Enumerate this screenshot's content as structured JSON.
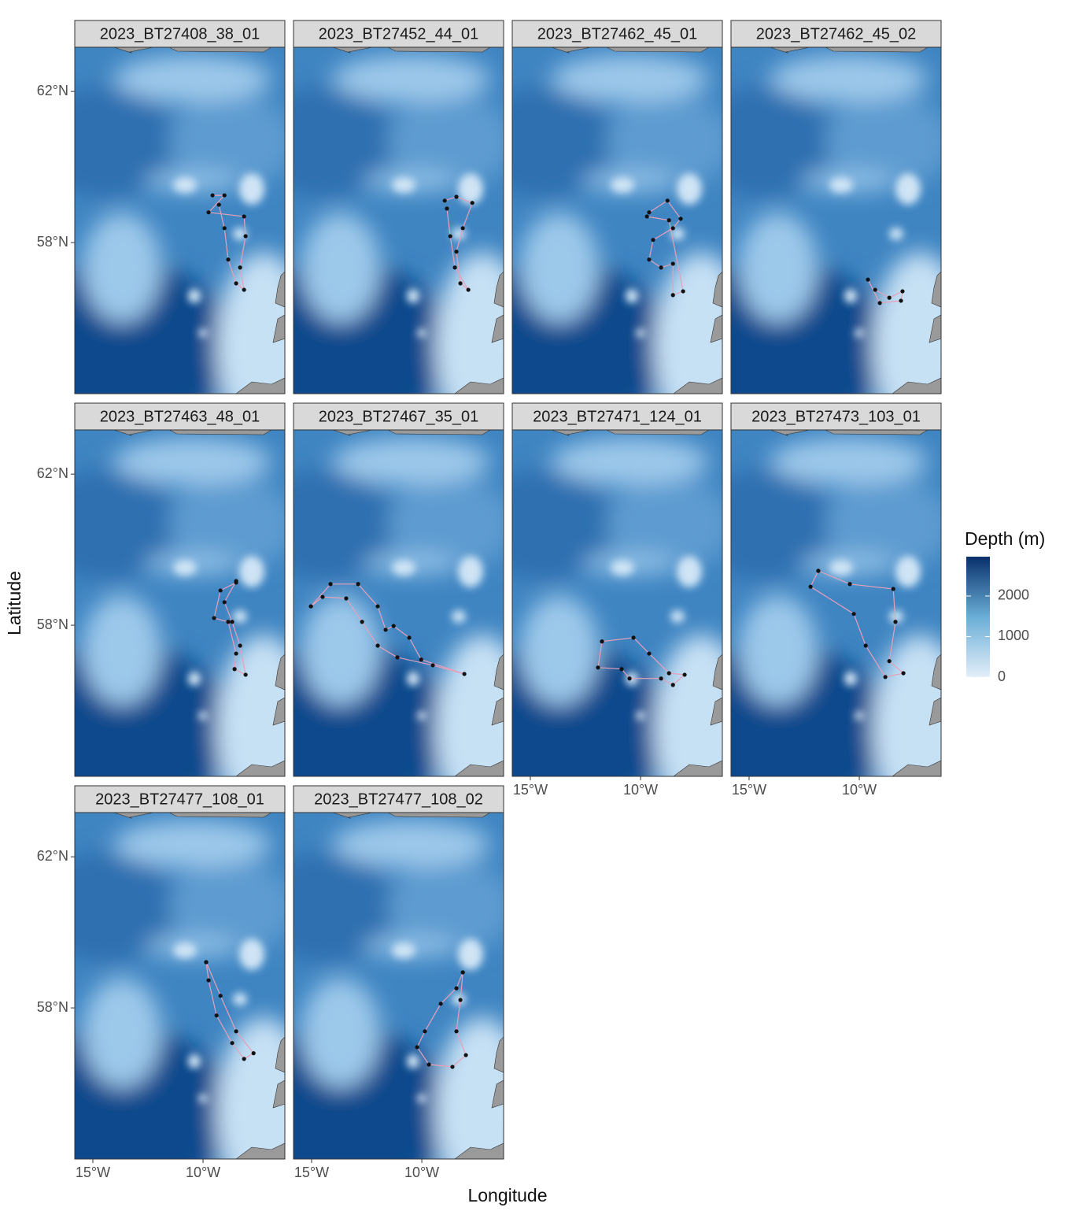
{
  "chart_data": {
    "type": "map",
    "x_label": "Longitude",
    "y_label": "Latitude",
    "xlim": [
      -15.82,
      -6.29
    ],
    "ylim": [
      54.0,
      63.17
    ],
    "xticks": [
      {
        "value": -15,
        "label": "15°W"
      },
      {
        "value": -10,
        "label": "10°W"
      }
    ],
    "yticks": [
      {
        "value": 58,
        "label": "58°N"
      },
      {
        "value": 62,
        "label": "62°N"
      }
    ],
    "track_color": "#111111",
    "line_color": "#e8a0b8",
    "legend": {
      "title": "Depth (m)",
      "lim": [
        0,
        2970
      ],
      "ticks": [
        0,
        1000,
        2000
      ],
      "colors": [
        "#e3eef9",
        "#6aaed6",
        "#08306b"
      ]
    },
    "panels": [
      {
        "title": "2023_BT27408_38_01",
        "lon": [
          -9.57,
          -9.03,
          -9.75,
          -8.14,
          -8.07,
          -8.32,
          -8.14,
          -8.5,
          -8.86,
          -9.03,
          -9.28
        ],
        "lat": [
          59.25,
          59.25,
          58.8,
          58.69,
          58.17,
          57.34,
          56.75,
          56.92,
          57.55,
          58.38,
          59.0
        ]
      },
      {
        "title": "2023_BT27452_44_01",
        "lon": [
          -8.96,
          -8.43,
          -7.71,
          -8.14,
          -8.43,
          -8.25,
          -7.89,
          -8.5,
          -8.71,
          -8.86
        ],
        "lat": [
          59.11,
          59.21,
          59.05,
          58.38,
          57.76,
          56.92,
          56.75,
          57.34,
          58.17,
          58.9
        ]
      },
      {
        "title": "2023_BT27462_45_01",
        "lon": [
          -9.61,
          -8.78,
          -8.18,
          -8.53,
          -9.43,
          -9.61,
          -9.07,
          -8.53,
          -8.53,
          -8.07,
          -8.71,
          -9.71
        ],
        "lat": [
          58.8,
          59.11,
          58.63,
          58.38,
          58.07,
          57.55,
          57.34,
          57.44,
          56.61,
          56.71,
          58.59,
          58.69
        ]
      },
      {
        "title": "2023_BT27462_45_02",
        "lon": [
          -9.61,
          -9.07,
          -8.11,
          -8.04,
          -8.64,
          -9.28
        ],
        "lat": [
          57.02,
          56.4,
          56.46,
          56.71,
          56.54,
          56.75
        ]
      },
      {
        "title": "2023_BT27463_48_01",
        "lon": [
          -8.5,
          -9.21,
          -9.5,
          -8.86,
          -8.5,
          -8.57,
          -8.07,
          -8.32,
          -8.68,
          -9.03,
          -8.5
        ],
        "lat": [
          59.13,
          58.92,
          58.19,
          58.09,
          57.25,
          56.84,
          56.69,
          57.46,
          58.09,
          58.61,
          59.17
        ]
      },
      {
        "title": "2023_BT27467_35_01",
        "lon": [
          -15.03,
          -14.14,
          -12.89,
          -12.0,
          -11.64,
          -11.28,
          -10.57,
          -10.03,
          -8.07,
          -9.5,
          -11.11,
          -12.0,
          -12.71,
          -13.43,
          -14.5,
          -15.03
        ],
        "lat": [
          58.5,
          59.09,
          59.09,
          58.5,
          57.88,
          57.98,
          57.67,
          57.09,
          56.71,
          56.94,
          57.15,
          57.46,
          58.09,
          58.71,
          58.75,
          58.5
        ]
      },
      {
        "title": "2023_BT27471_124_01",
        "lon": [
          -11.75,
          -10.32,
          -9.61,
          -8.71,
          -8.0,
          -8.53,
          -9.07,
          -10.5,
          -10.86,
          -11.93,
          -11.75
        ],
        "lat": [
          57.57,
          57.67,
          57.25,
          56.73,
          56.69,
          56.42,
          56.59,
          56.59,
          56.84,
          56.88,
          57.57
        ]
      },
      {
        "title": "2023_BT27473_103_01",
        "lon": [
          -11.86,
          -10.43,
          -8.46,
          -8.36,
          -8.64,
          -8.0,
          -8.82,
          -9.71,
          -10.25,
          -12.21,
          -11.86
        ],
        "lat": [
          59.44,
          59.09,
          58.96,
          58.09,
          57.05,
          56.73,
          56.63,
          57.46,
          58.3,
          59.02,
          59.44
        ]
      },
      {
        "title": "2023_BT27477_108_01",
        "lon": [
          -9.86,
          -9.21,
          -8.5,
          -7.71,
          -8.14,
          -8.68,
          -9.39,
          -9.75,
          -9.86
        ],
        "lat": [
          59.21,
          58.32,
          57.38,
          56.8,
          56.65,
          57.07,
          57.8,
          58.73,
          59.21
        ]
      },
      {
        "title": "2023_BT27477_108_02",
        "lon": [
          -8.14,
          -8.43,
          -9.14,
          -9.86,
          -10.21,
          -9.68,
          -8.61,
          -8.0,
          -8.43,
          -8.25,
          -8.14
        ],
        "lat": [
          58.94,
          58.52,
          58.11,
          57.38,
          56.96,
          56.5,
          56.44,
          56.75,
          57.38,
          58.21,
          58.94
        ]
      }
    ]
  }
}
